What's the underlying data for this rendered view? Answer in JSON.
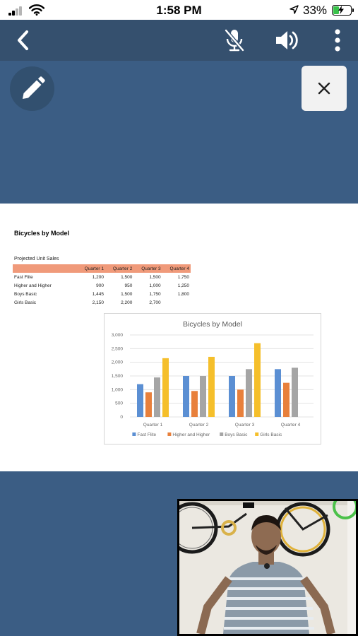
{
  "status_bar": {
    "time": "1:58 PM",
    "battery_percent": "33%",
    "battery_level": 0.33,
    "battery_color": "#39c24a",
    "icons": [
      "cellular-signal-icon",
      "wifi-icon",
      "location-arrow-icon",
      "battery-charging-icon"
    ]
  },
  "toolbar": {
    "icons": [
      "back-chevron-icon",
      "microphone-muted-icon",
      "speaker-icon",
      "more-vertical-icon"
    ],
    "background": "#35506e"
  },
  "overlay_controls": {
    "annotate_icon": "pencil-icon",
    "close_icon": "close-x-icon"
  },
  "document": {
    "title": "Bicycles by Model",
    "sheet": {
      "caption": "Projected Unit Sales",
      "headers": [
        "",
        "Quarter 1",
        "Quarter 2",
        "Quarter 3",
        "Quarter 4"
      ],
      "rows": [
        [
          "Fast Flite",
          "1,200",
          "1,500",
          "1,500",
          "1,750"
        ],
        [
          "Higher and Higher",
          "900",
          "950",
          "1,000",
          "1,250"
        ],
        [
          "Boys Basic",
          "1,445",
          "1,500",
          "1,750",
          "1,800"
        ],
        [
          "Girls Basic",
          "2,150",
          "2,200",
          "2,700",
          ""
        ]
      ],
      "header_color": "#f09a7a"
    }
  },
  "chart_data": {
    "type": "bar",
    "title": "Bicycles by Model",
    "categories": [
      "Quarter 1",
      "Quarter 2",
      "Quarter 3",
      "Quarter 4"
    ],
    "series": [
      {
        "name": "Fast Flite",
        "color": "#5b8fd3",
        "values": [
          1200,
          1500,
          1500,
          1750
        ]
      },
      {
        "name": "Higher and Higher",
        "color": "#e8803c",
        "values": [
          900,
          950,
          1000,
          1250
        ]
      },
      {
        "name": "Boys Basic",
        "color": "#a5a5a5",
        "values": [
          1445,
          1500,
          1750,
          1800
        ]
      },
      {
        "name": "Girls Basic",
        "color": "#f5bf2b",
        "values": [
          2150,
          2200,
          2700,
          null
        ]
      }
    ],
    "ylim": [
      0,
      3000
    ],
    "yticks": [
      "0",
      "500",
      "1,000",
      "1,500",
      "2,000",
      "2,500",
      "3,000"
    ],
    "grid": true,
    "legend": "bottom"
  },
  "pip_video": {
    "description_icon": "participant-video"
  }
}
